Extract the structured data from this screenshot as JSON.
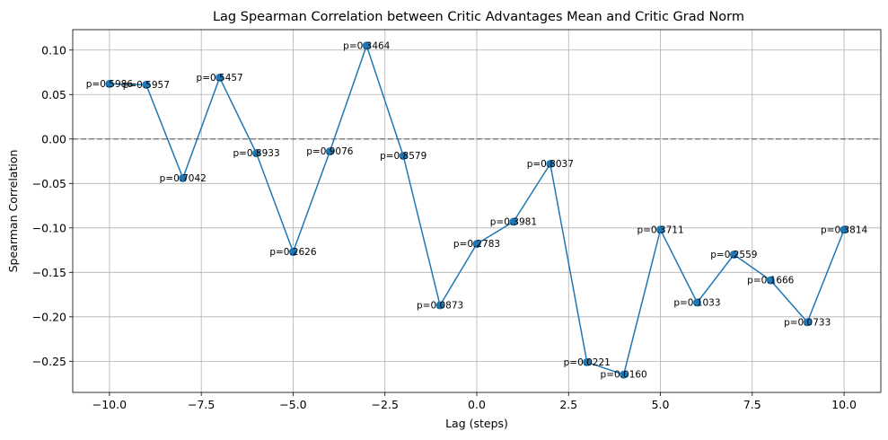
{
  "chart_data": {
    "type": "line",
    "title": "Lag Spearman Correlation between Critic Advantages Mean and Critic Grad Norm",
    "xlabel": "Lag (steps)",
    "ylabel": "Spearman Correlation",
    "xlim": [
      -11.0,
      11.0
    ],
    "ylim": [
      -0.285,
      0.123
    ],
    "xticks": [
      -10.0,
      -7.5,
      -5.0,
      -2.5,
      0.0,
      2.5,
      5.0,
      7.5,
      10.0
    ],
    "xtick_labels": [
      "−10.0",
      "−7.5",
      "−5.0",
      "−2.5",
      "0.0",
      "2.5",
      "5.0",
      "7.5",
      "10.0"
    ],
    "yticks": [
      0.1,
      0.05,
      0.0,
      -0.05,
      -0.1,
      -0.15,
      -0.2,
      -0.25
    ],
    "ytick_labels": [
      "0.10",
      "0.05",
      "0.00",
      "−0.05",
      "−0.10",
      "−0.15",
      "−0.20",
      "−0.25"
    ],
    "grid": true,
    "reference_line": {
      "y": 0.0,
      "style": "dashed",
      "color": "#808080"
    },
    "series_color": "#1f77b4",
    "x": [
      -10,
      -9,
      -8,
      -7,
      -6,
      -5,
      -4,
      -3,
      -2,
      -1,
      0,
      1,
      2,
      3,
      4,
      5,
      6,
      7,
      8,
      9,
      10
    ],
    "values": [
      0.062,
      0.061,
      -0.044,
      0.069,
      -0.016,
      -0.127,
      -0.014,
      0.105,
      -0.019,
      -0.187,
      -0.118,
      -0.093,
      -0.028,
      -0.251,
      -0.265,
      -0.102,
      -0.184,
      -0.13,
      -0.159,
      -0.206,
      -0.102
    ],
    "annotations": [
      "p=0.5986",
      "p=0.5957",
      "p=0.7042",
      "p=0.5457",
      "p=0.8933",
      "p=0.2626",
      "p=0.9076",
      "p=0.3464",
      "p=0.8579",
      "p=0.0873",
      "p=0.2783",
      "p=0.3981",
      "p=0.8037",
      "p=0.0221",
      "p=0.0160",
      "p=0.3711",
      "p=0.1033",
      "p=0.2559",
      "p=0.1666",
      "p=0.0733",
      "p=0.3814"
    ]
  }
}
